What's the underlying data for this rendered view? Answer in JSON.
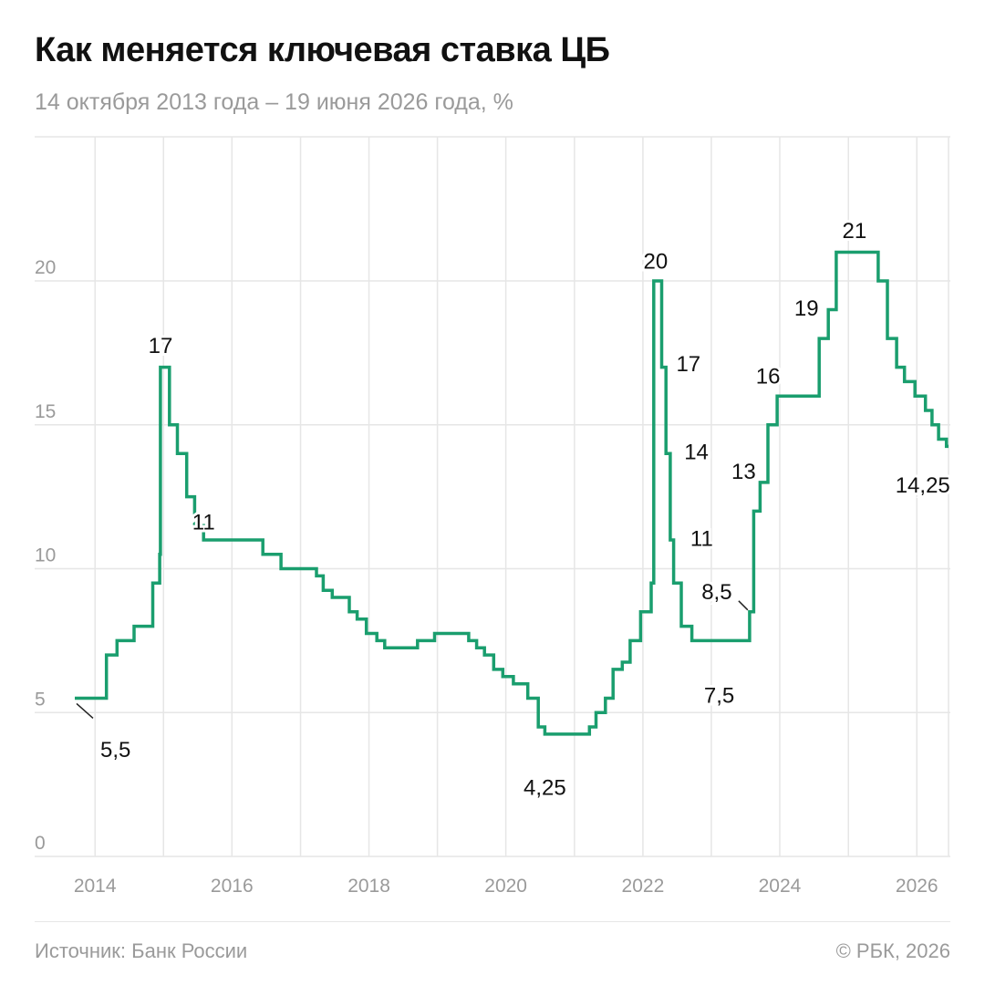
{
  "header": {
    "title": "Как меняется ключевая ставка ЦБ",
    "subtitle": "14 октября 2013 года – 19 июня 2026 года, %"
  },
  "footer": {
    "source": "Источник: Банк России",
    "copyright": "© РБК, 2026"
  },
  "colors": {
    "line": "#1a9e6e",
    "grid": "#e6e6e6",
    "axis_text": "#9a9a9a",
    "label_text": "#111111"
  },
  "chart_data": {
    "type": "line",
    "title": "Как меняется ключевая ставка ЦБ",
    "subtitle": "14 октября 2013 года – 19 июня 2026 года, %",
    "xlabel": "",
    "ylabel": "",
    "step": true,
    "grid": true,
    "x_ticks": [
      "2014",
      "2016",
      "2018",
      "2020",
      "2022",
      "2024",
      "2026"
    ],
    "y_ticks": [
      0,
      5,
      10,
      15,
      20
    ],
    "xlim": [
      "2013-09-15",
      "2026-06-19"
    ],
    "ylim": [
      0,
      25
    ],
    "series": [
      {
        "points": [
          [
            "2013-09-15",
            5.5
          ],
          [
            "2014-03-03",
            7.0
          ],
          [
            "2014-04-28",
            7.5
          ],
          [
            "2014-07-28",
            8.0
          ],
          [
            "2014-11-05",
            9.5
          ],
          [
            "2014-12-12",
            10.5
          ],
          [
            "2014-12-16",
            17.0
          ],
          [
            "2015-02-02",
            15.0
          ],
          [
            "2015-03-16",
            14.0
          ],
          [
            "2015-05-05",
            12.5
          ],
          [
            "2015-06-16",
            11.5
          ],
          [
            "2015-08-03",
            11.0
          ],
          [
            "2016-06-14",
            10.5
          ],
          [
            "2016-09-19",
            10.0
          ],
          [
            "2017-03-27",
            9.75
          ],
          [
            "2017-05-02",
            9.25
          ],
          [
            "2017-06-19",
            9.0
          ],
          [
            "2017-09-18",
            8.5
          ],
          [
            "2017-10-30",
            8.25
          ],
          [
            "2017-12-18",
            7.75
          ],
          [
            "2018-02-12",
            7.5
          ],
          [
            "2018-03-26",
            7.25
          ],
          [
            "2018-09-17",
            7.5
          ],
          [
            "2018-12-17",
            7.75
          ],
          [
            "2019-06-17",
            7.5
          ],
          [
            "2019-07-29",
            7.25
          ],
          [
            "2019-09-09",
            7.0
          ],
          [
            "2019-10-28",
            6.5
          ],
          [
            "2019-12-16",
            6.25
          ],
          [
            "2020-02-10",
            6.0
          ],
          [
            "2020-04-27",
            5.5
          ],
          [
            "2020-06-22",
            4.5
          ],
          [
            "2020-07-27",
            4.25
          ],
          [
            "2021-03-22",
            4.5
          ],
          [
            "2021-04-26",
            5.0
          ],
          [
            "2021-06-15",
            5.5
          ],
          [
            "2021-07-26",
            6.5
          ],
          [
            "2021-09-13",
            6.75
          ],
          [
            "2021-10-25",
            7.5
          ],
          [
            "2021-12-20",
            8.5
          ],
          [
            "2022-02-14",
            9.5
          ],
          [
            "2022-02-28",
            20.0
          ],
          [
            "2022-04-11",
            17.0
          ],
          [
            "2022-05-04",
            14.0
          ],
          [
            "2022-05-27",
            11.0
          ],
          [
            "2022-06-14",
            9.5
          ],
          [
            "2022-07-25",
            8.0
          ],
          [
            "2022-09-19",
            7.5
          ],
          [
            "2023-07-24",
            8.5
          ],
          [
            "2023-08-15",
            12.0
          ],
          [
            "2023-09-18",
            13.0
          ],
          [
            "2023-10-30",
            15.0
          ],
          [
            "2023-12-18",
            16.0
          ],
          [
            "2024-07-29",
            18.0
          ],
          [
            "2024-09-16",
            19.0
          ],
          [
            "2024-10-28",
            21.0
          ],
          [
            "2025-06-09",
            20.0
          ],
          [
            "2025-07-28",
            18.0
          ],
          [
            "2025-09-15",
            17.0
          ],
          [
            "2025-10-27",
            16.5
          ],
          [
            "2025-12-22",
            16.0
          ],
          [
            "2026-02-16",
            15.5
          ],
          [
            "2026-03-23",
            15.0
          ],
          [
            "2026-04-27",
            14.5
          ],
          [
            "2026-06-08",
            14.25
          ],
          [
            "2026-06-19",
            14.25
          ]
        ]
      }
    ],
    "annotations": [
      {
        "text": "5,5",
        "x": "2013-09-15",
        "y": 5.5
      },
      {
        "text": "17",
        "x": "2014-12-16",
        "y": 17.0
      },
      {
        "text": "11",
        "x": "2015-08-03",
        "y": 11.0
      },
      {
        "text": "4,25",
        "x": "2020-07-27",
        "y": 4.25
      },
      {
        "text": "20",
        "x": "2022-02-28",
        "y": 20.0
      },
      {
        "text": "17",
        "x": "2022-04-11",
        "y": 17.0
      },
      {
        "text": "14",
        "x": "2022-05-04",
        "y": 14.0
      },
      {
        "text": "11",
        "x": "2022-05-27",
        "y": 11.0
      },
      {
        "text": "7,5",
        "x": "2022-09-19",
        "y": 7.5
      },
      {
        "text": "8,5",
        "x": "2023-07-24",
        "y": 8.5
      },
      {
        "text": "13",
        "x": "2023-09-18",
        "y": 13.0
      },
      {
        "text": "16",
        "x": "2023-12-18",
        "y": 16.0
      },
      {
        "text": "19",
        "x": "2024-09-16",
        "y": 19.0
      },
      {
        "text": "21",
        "x": "2024-10-28",
        "y": 21.0
      },
      {
        "text": "14,25",
        "x": "2026-06-08",
        "y": 14.25
      }
    ]
  }
}
